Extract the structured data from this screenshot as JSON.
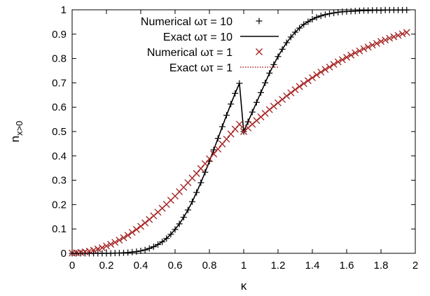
{
  "chart_data": {
    "type": "line",
    "xlabel": "κ",
    "ylabel_main": "n",
    "ylabel_sub": "x>0",
    "xlim": [
      0,
      2
    ],
    "ylim": [
      0,
      1
    ],
    "xticks": [
      "0",
      "0.2",
      "0.4",
      "0.6",
      "0.8",
      "1",
      "1.2",
      "1.4",
      "1.6",
      "1.8",
      "2"
    ],
    "yticks": [
      "0",
      "0.1",
      "0.2",
      "0.3",
      "0.4",
      "0.5",
      "0.6",
      "0.7",
      "0.8",
      "0.9",
      "1"
    ],
    "legend_position": "top-left",
    "x": [
      0,
      0.025,
      0.05,
      0.075,
      0.1,
      0.125,
      0.15,
      0.175,
      0.2,
      0.225,
      0.25,
      0.275,
      0.3,
      0.325,
      0.35,
      0.375,
      0.4,
      0.425,
      0.45,
      0.475,
      0.5,
      0.525,
      0.55,
      0.575,
      0.6,
      0.625,
      0.65,
      0.675,
      0.7,
      0.725,
      0.75,
      0.775,
      0.8,
      0.825,
      0.85,
      0.875,
      0.9,
      0.925,
      0.95,
      0.975,
      1.0,
      1.025,
      1.05,
      1.075,
      1.1,
      1.125,
      1.15,
      1.175,
      1.2,
      1.225,
      1.25,
      1.275,
      1.3,
      1.325,
      1.35,
      1.375,
      1.4,
      1.425,
      1.45,
      1.475,
      1.5,
      1.525,
      1.55,
      1.575,
      1.6,
      1.625,
      1.65,
      1.675,
      1.7,
      1.725,
      1.75,
      1.775,
      1.8,
      1.825,
      1.85,
      1.875,
      1.9,
      1.925,
      1.95
    ],
    "series": [
      {
        "name": "Numerical ωτ = 10",
        "style": "points-plus",
        "color": "#000000",
        "values": [
          0,
          0,
          0,
          0,
          0,
          0,
          0,
          0,
          0,
          0,
          0.001,
          0.001,
          0.002,
          0.003,
          0.005,
          0.007,
          0.01,
          0.014,
          0.02,
          0.027,
          0.036,
          0.047,
          0.061,
          0.078,
          0.098,
          0.121,
          0.148,
          0.178,
          0.212,
          0.25,
          0.29,
          0.333,
          0.378,
          0.425,
          0.472,
          0.52,
          0.567,
          0.613,
          0.657,
          0.698,
          0.5,
          0.54,
          0.58,
          0.62,
          0.66,
          0.7,
          0.74,
          0.775,
          0.808,
          0.838,
          0.865,
          0.888,
          0.908,
          0.925,
          0.94,
          0.951,
          0.961,
          0.969,
          0.975,
          0.98,
          0.984,
          0.987,
          0.99,
          0.992,
          0.993,
          0.994,
          0.995,
          0.996,
          0.997,
          0.997,
          0.998,
          0.998,
          0.998,
          0.999,
          0.999,
          0.999,
          0.999,
          0.999,
          0.999
        ]
      },
      {
        "name": "Exact ωτ = 10",
        "style": "line-solid",
        "color": "#000000",
        "values": [
          0,
          0,
          0,
          0,
          0,
          0,
          0,
          0,
          0,
          0,
          0.001,
          0.001,
          0.002,
          0.003,
          0.005,
          0.007,
          0.01,
          0.014,
          0.02,
          0.027,
          0.036,
          0.047,
          0.061,
          0.078,
          0.098,
          0.121,
          0.148,
          0.178,
          0.212,
          0.25,
          0.29,
          0.333,
          0.378,
          0.425,
          0.472,
          0.52,
          0.567,
          0.613,
          0.657,
          0.698,
          0.5,
          0.54,
          0.58,
          0.62,
          0.66,
          0.7,
          0.74,
          0.775,
          0.808,
          0.838,
          0.865,
          0.888,
          0.908,
          0.925,
          0.94,
          0.951,
          0.961,
          0.969,
          0.975,
          0.98,
          0.984,
          0.987,
          0.99,
          0.992,
          0.993,
          0.994,
          0.995,
          0.996,
          0.997,
          0.997,
          0.998,
          0.998,
          0.998,
          0.999,
          0.999,
          0.999,
          0.999,
          0.999,
          0.999
        ]
      },
      {
        "name": "Numerical ωτ = 1",
        "style": "points-cross",
        "color": "#a52020",
        "values": [
          0.001,
          0.002,
          0.004,
          0.006,
          0.009,
          0.013,
          0.018,
          0.023,
          0.03,
          0.037,
          0.045,
          0.054,
          0.064,
          0.074,
          0.086,
          0.098,
          0.111,
          0.125,
          0.139,
          0.154,
          0.169,
          0.185,
          0.201,
          0.218,
          0.235,
          0.253,
          0.271,
          0.29,
          0.309,
          0.328,
          0.348,
          0.368,
          0.388,
          0.408,
          0.428,
          0.449,
          0.469,
          0.49,
          0.51,
          0.53,
          0.5,
          0.515,
          0.53,
          0.545,
          0.56,
          0.575,
          0.59,
          0.604,
          0.618,
          0.632,
          0.646,
          0.659,
          0.672,
          0.685,
          0.697,
          0.709,
          0.721,
          0.733,
          0.744,
          0.755,
          0.765,
          0.776,
          0.786,
          0.795,
          0.805,
          0.814,
          0.823,
          0.831,
          0.84,
          0.847,
          0.855,
          0.862,
          0.87,
          0.876,
          0.883,
          0.889,
          0.895,
          0.901,
          0.907
        ]
      },
      {
        "name": "Exact ωτ = 1",
        "style": "line-dotted",
        "color": "#a52020",
        "values": [
          0.001,
          0.002,
          0.004,
          0.006,
          0.009,
          0.013,
          0.018,
          0.023,
          0.03,
          0.037,
          0.045,
          0.054,
          0.064,
          0.074,
          0.086,
          0.098,
          0.111,
          0.125,
          0.139,
          0.154,
          0.169,
          0.185,
          0.201,
          0.218,
          0.235,
          0.253,
          0.271,
          0.29,
          0.309,
          0.328,
          0.348,
          0.368,
          0.388,
          0.408,
          0.428,
          0.449,
          0.469,
          0.49,
          0.51,
          0.53,
          0.5,
          0.515,
          0.53,
          0.545,
          0.56,
          0.575,
          0.59,
          0.604,
          0.618,
          0.632,
          0.646,
          0.659,
          0.672,
          0.685,
          0.697,
          0.709,
          0.721,
          0.733,
          0.744,
          0.755,
          0.765,
          0.776,
          0.786,
          0.795,
          0.805,
          0.814,
          0.823,
          0.831,
          0.84,
          0.847,
          0.855,
          0.862,
          0.87,
          0.876,
          0.883,
          0.889,
          0.895,
          0.901,
          0.907
        ]
      }
    ]
  }
}
